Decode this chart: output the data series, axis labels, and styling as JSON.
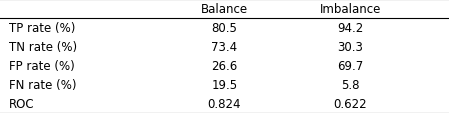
{
  "col_labels": [
    "",
    "Balance",
    "Imbalance"
  ],
  "rows": [
    [
      "TP rate (%)",
      "80.5",
      "94.2"
    ],
    [
      "TN rate (%)",
      "73.4",
      "30.3"
    ],
    [
      "FP rate (%)",
      "26.6",
      "69.7"
    ],
    [
      "FN rate (%)",
      "19.5",
      "5.8"
    ],
    [
      "ROC",
      "0.824",
      "0.622"
    ]
  ],
  "font_size": 8.5,
  "background_color": "#ffffff",
  "line_color": "#000000",
  "text_color": "#000000",
  "fig_width": 4.49,
  "fig_height": 1.14,
  "dpi": 100
}
